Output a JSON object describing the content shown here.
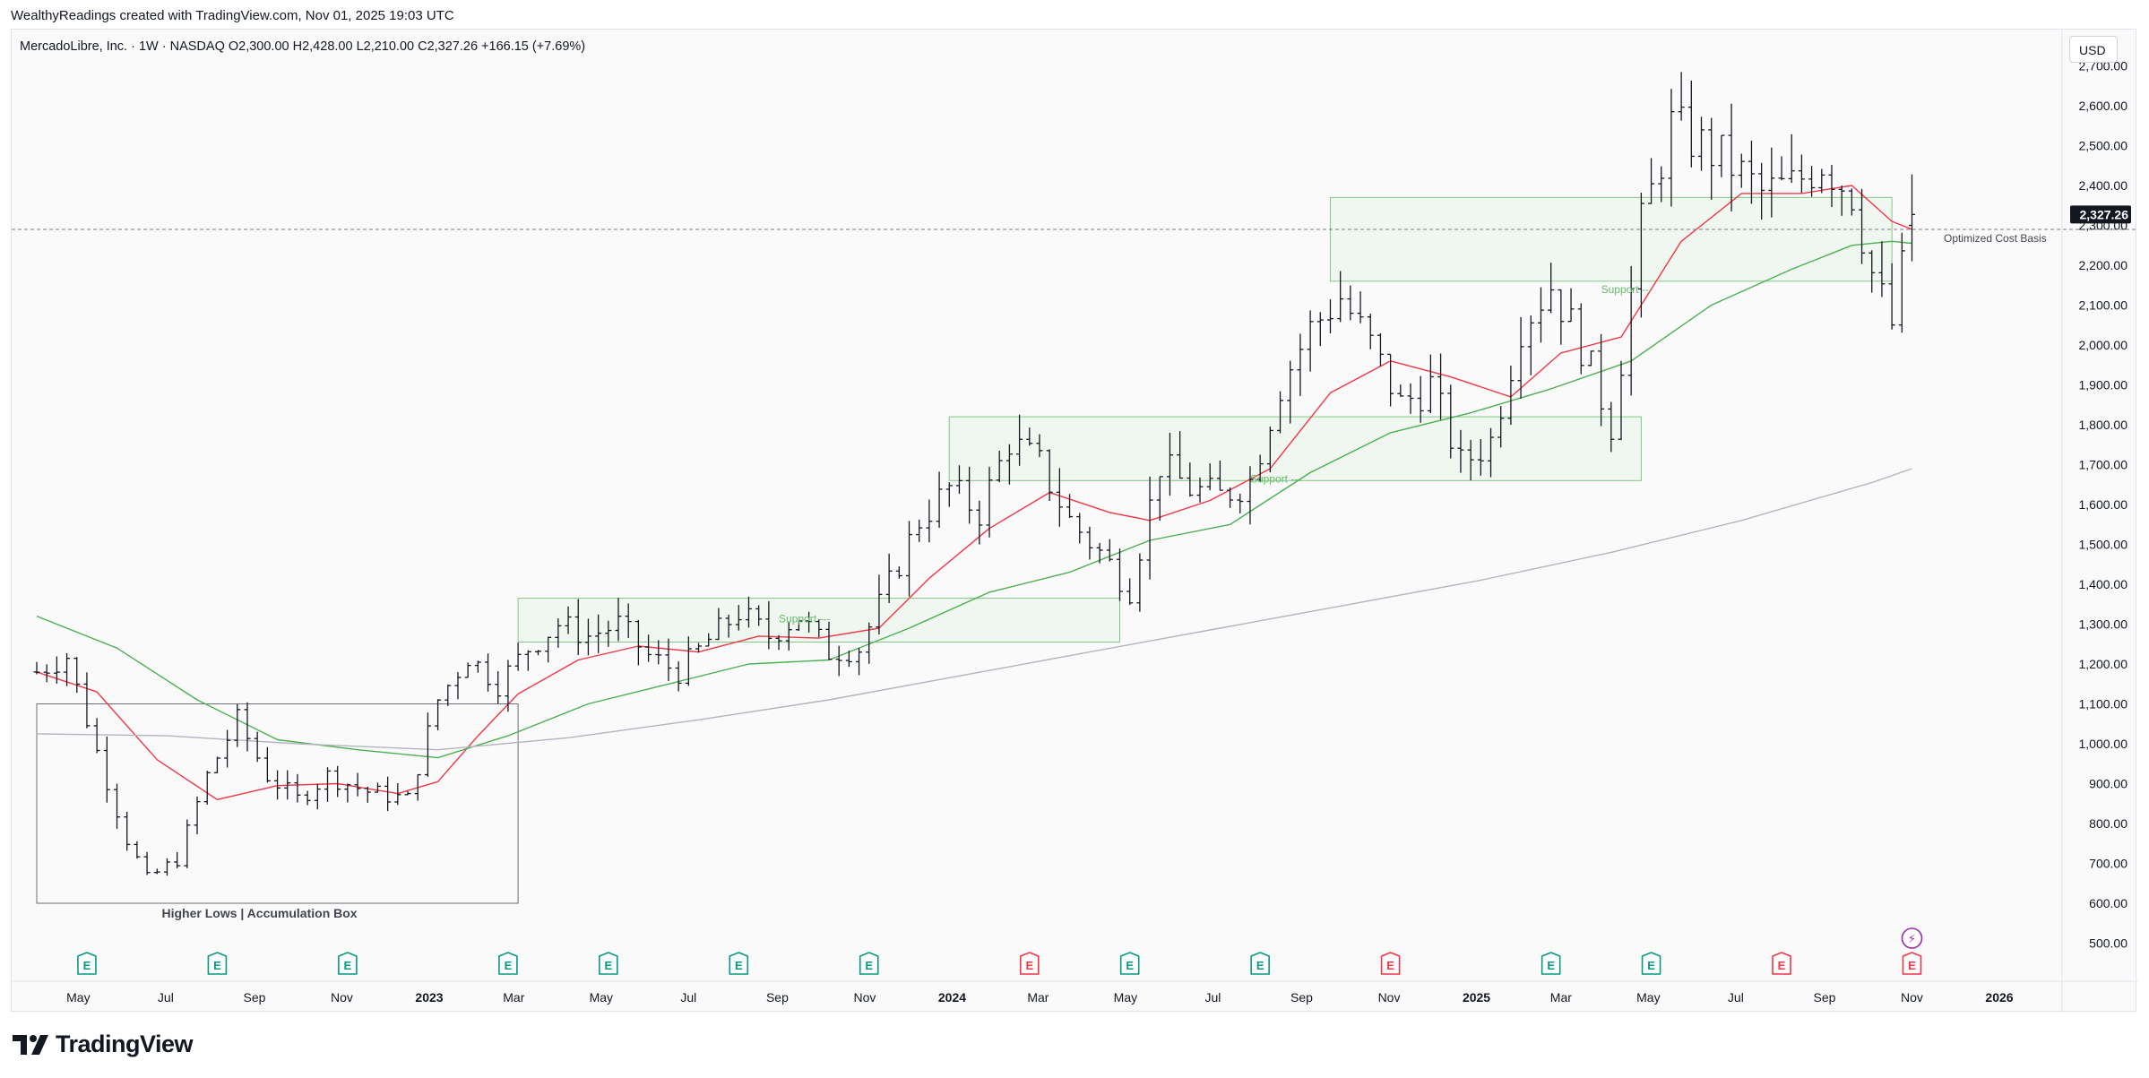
{
  "header": {
    "caption": "WealthyReadings created with TradingView.com, Nov 01, 2025 19:03 UTC",
    "symbol_line": "MercadoLibre, Inc. · 1W · NASDAQ  O2,300.00  H2,428.00  L2,210.00  C2,327.26  +166.15 (+7.69%)",
    "currency_label": "USD"
  },
  "brand": {
    "name": "TradingView"
  },
  "colors": {
    "background": "#fafafa",
    "bar": "#131722",
    "ma_fast": "#f23645",
    "ma_mid": "#4caf50",
    "ma_slow": "#b2b5be",
    "zone_stroke": "#81c784",
    "zone_fill": "#eef6ee",
    "support_text": "#66bb6a",
    "earnings_green": "#089981",
    "earnings_red": "#f23645",
    "dividend_purple": "#9c27b0",
    "price_label_bg": "#131722"
  },
  "chart_data": {
    "type": "ohlc",
    "symbol": "MercadoLibre, Inc.",
    "interval": "1W",
    "exchange": "NASDAQ",
    "currency": "USD",
    "x_axis_labels": [
      "May",
      "Jul",
      "Sep",
      "Nov",
      "2023",
      "Mar",
      "May",
      "Jul",
      "Sep",
      "Nov",
      "2024",
      "Mar",
      "May",
      "Jul",
      "Sep",
      "Nov",
      "2025",
      "Mar",
      "May",
      "Jul",
      "Sep",
      "Nov",
      "2026"
    ],
    "x_axis_bold": [
      "2023",
      "2024",
      "2025",
      "2026"
    ],
    "y_axis_labels": [
      "500.00",
      "600.00",
      "700.00",
      "800.00",
      "900.00",
      "1,000.00",
      "1,100.00",
      "1,200.00",
      "1,300.00",
      "1,400.00",
      "1,500.00",
      "1,600.00",
      "1,700.00",
      "1,800.00",
      "1,900.00",
      "2,000.00",
      "2,100.00",
      "2,200.00",
      "2,300.00",
      "2,400.00",
      "2,500.00",
      "2,600.00",
      "2,700.00"
    ],
    "y_axis_values": [
      500,
      600,
      700,
      800,
      900,
      1000,
      1100,
      1200,
      1300,
      1400,
      1500,
      1600,
      1700,
      1800,
      1900,
      2000,
      2100,
      2200,
      2300,
      2400,
      2500,
      2600,
      2700
    ],
    "current_price_label": "2,327.26",
    "current_price": 2327.26,
    "cost_basis_label": "Optimized Cost Basis",
    "cost_basis": 2290,
    "last_bar": {
      "open": 2300.0,
      "high": 2428.0,
      "low": 2210.0,
      "close": 2327.26,
      "change": 166.15,
      "change_pct": 7.69
    },
    "price_path": [
      [
        "2022-04-02",
        1180
      ],
      [
        "2022-04-23",
        1220
      ],
      [
        "2022-05-14",
        980
      ],
      [
        "2022-06-04",
        760
      ],
      [
        "2022-06-18",
        660
      ],
      [
        "2022-07-09",
        710
      ],
      [
        "2022-07-30",
        920
      ],
      [
        "2022-08-20",
        1060
      ],
      [
        "2022-09-10",
        920
      ],
      [
        "2022-10-01",
        860
      ],
      [
        "2022-10-22",
        920
      ],
      [
        "2022-11-19",
        880
      ],
      [
        "2022-12-17",
        860
      ],
      [
        "2023-01-07",
        1110
      ],
      [
        "2023-01-28",
        1220
      ],
      [
        "2023-02-18",
        1150
      ],
      [
        "2023-03-11",
        1240
      ],
      [
        "2023-04-01",
        1300
      ],
      [
        "2023-04-22",
        1270
      ],
      [
        "2023-05-13",
        1300
      ],
      [
        "2023-06-03",
        1220
      ],
      [
        "2023-06-24",
        1180
      ],
      [
        "2023-07-15",
        1260
      ],
      [
        "2023-08-05",
        1330
      ],
      [
        "2023-08-26",
        1270
      ],
      [
        "2023-09-16",
        1320
      ],
      [
        "2023-10-07",
        1230
      ],
      [
        "2023-10-28",
        1240
      ],
      [
        "2023-11-18",
        1400
      ],
      [
        "2023-12-09",
        1560
      ],
      [
        "2023-12-30",
        1640
      ],
      [
        "2024-01-20",
        1580
      ],
      [
        "2024-02-10",
        1760
      ],
      [
        "2024-03-02",
        1700
      ],
      [
        "2024-03-23",
        1560
      ],
      [
        "2024-04-13",
        1480
      ],
      [
        "2024-05-04",
        1390
      ],
      [
        "2024-05-25",
        1700
      ],
      [
        "2024-06-15",
        1640
      ],
      [
        "2024-07-06",
        1620
      ],
      [
        "2024-07-27",
        1660
      ],
      [
        "2024-08-17",
        1900
      ],
      [
        "2024-09-07",
        2040
      ],
      [
        "2024-09-28",
        2120
      ],
      [
        "2024-10-19",
        2000
      ],
      [
        "2024-11-09",
        1850
      ],
      [
        "2024-11-30",
        1900
      ],
      [
        "2024-12-21",
        1700
      ],
      [
        "2025-01-11",
        1760
      ],
      [
        "2025-02-01",
        2050
      ],
      [
        "2025-02-22",
        2150
      ],
      [
        "2025-03-15",
        2000
      ],
      [
        "2025-04-05",
        1800
      ],
      [
        "2025-04-26",
        2300
      ],
      [
        "2025-05-17",
        2550
      ],
      [
        "2025-06-07",
        2500
      ],
      [
        "2025-06-28",
        2450
      ],
      [
        "2025-07-19",
        2380
      ],
      [
        "2025-08-09",
        2400
      ],
      [
        "2025-08-30",
        2460
      ],
      [
        "2025-09-20",
        2380
      ],
      [
        "2025-10-04",
        2180
      ],
      [
        "2025-10-18",
        2050
      ],
      [
        "2025-11-01",
        2327
      ]
    ],
    "range_pct": 3.8,
    "moving_averages": [
      {
        "color": "#f23645",
        "points": [
          [
            "2022-04-02",
            1180
          ],
          [
            "2022-05-14",
            1130
          ],
          [
            "2022-06-25",
            960
          ],
          [
            "2022-08-06",
            860
          ],
          [
            "2022-09-17",
            895
          ],
          [
            "2022-10-29",
            900
          ],
          [
            "2022-12-10",
            875
          ],
          [
            "2023-01-07",
            905
          ],
          [
            "2023-02-04",
            1020
          ],
          [
            "2023-03-04",
            1125
          ],
          [
            "2023-04-15",
            1210
          ],
          [
            "2023-05-27",
            1245
          ],
          [
            "2023-07-08",
            1230
          ],
          [
            "2023-08-19",
            1270
          ],
          [
            "2023-09-30",
            1265
          ],
          [
            "2023-11-11",
            1290
          ],
          [
            "2023-12-16",
            1415
          ],
          [
            "2024-01-27",
            1540
          ],
          [
            "2024-03-09",
            1630
          ],
          [
            "2024-04-20",
            1580
          ],
          [
            "2024-05-18",
            1560
          ],
          [
            "2024-06-29",
            1610
          ],
          [
            "2024-08-10",
            1690
          ],
          [
            "2024-09-21",
            1880
          ],
          [
            "2024-11-02",
            1960
          ],
          [
            "2024-12-14",
            1920
          ],
          [
            "2025-01-25",
            1870
          ],
          [
            "2025-03-01",
            1980
          ],
          [
            "2025-04-12",
            2020
          ],
          [
            "2025-05-24",
            2260
          ],
          [
            "2025-07-05",
            2380
          ],
          [
            "2025-08-16",
            2380
          ],
          [
            "2025-09-20",
            2400
          ],
          [
            "2025-10-18",
            2310
          ],
          [
            "2025-11-01",
            2290
          ]
        ]
      },
      {
        "color": "#4caf50",
        "points": [
          [
            "2022-04-02",
            1320
          ],
          [
            "2022-05-28",
            1240
          ],
          [
            "2022-07-23",
            1110
          ],
          [
            "2022-09-17",
            1010
          ],
          [
            "2022-11-12",
            985
          ],
          [
            "2023-01-07",
            965
          ],
          [
            "2023-02-25",
            1020
          ],
          [
            "2023-04-22",
            1100
          ],
          [
            "2023-06-17",
            1150
          ],
          [
            "2023-08-12",
            1200
          ],
          [
            "2023-10-07",
            1210
          ],
          [
            "2023-12-02",
            1290
          ],
          [
            "2024-01-27",
            1380
          ],
          [
            "2024-03-23",
            1430
          ],
          [
            "2024-05-18",
            1510
          ],
          [
            "2024-07-13",
            1550
          ],
          [
            "2024-09-07",
            1680
          ],
          [
            "2024-11-02",
            1780
          ],
          [
            "2024-12-28",
            1830
          ],
          [
            "2025-02-22",
            1890
          ],
          [
            "2025-04-19",
            1960
          ],
          [
            "2025-06-14",
            2100
          ],
          [
            "2025-08-09",
            2190
          ],
          [
            "2025-09-20",
            2250
          ],
          [
            "2025-10-18",
            2260
          ],
          [
            "2025-11-01",
            2255
          ]
        ]
      },
      {
        "color": "#b2b5be",
        "points": [
          [
            "2022-04-02",
            1025
          ],
          [
            "2022-07-02",
            1020
          ],
          [
            "2022-10-01",
            1000
          ],
          [
            "2023-01-07",
            985
          ],
          [
            "2023-04-08",
            1015
          ],
          [
            "2023-07-08",
            1060
          ],
          [
            "2023-10-07",
            1110
          ],
          [
            "2024-01-06",
            1170
          ],
          [
            "2024-04-06",
            1230
          ],
          [
            "2024-07-06",
            1290
          ],
          [
            "2024-10-05",
            1350
          ],
          [
            "2025-01-04",
            1410
          ],
          [
            "2025-04-05",
            1480
          ],
          [
            "2025-07-05",
            1560
          ],
          [
            "2025-10-04",
            1655
          ],
          [
            "2025-11-01",
            1690
          ]
        ]
      }
    ],
    "zones": [
      {
        "label": "Higher Lows | Accumulation Box",
        "x0": "2022-04-02",
        "x1": "2023-03-04",
        "y0": 600,
        "y1": 1100,
        "style": "box"
      },
      {
        "label": "Support",
        "x0": "2023-03-04",
        "x1": "2024-04-27",
        "y0": 1255,
        "y1": 1365,
        "style": "zone"
      },
      {
        "label": "Support",
        "x0": "2023-12-30",
        "x1": "2025-04-26",
        "y0": 1660,
        "y1": 1820,
        "style": "zone"
      },
      {
        "label": "Support",
        "x0": "2024-09-21",
        "x1": "2025-10-18",
        "y0": 2160,
        "y1": 2370,
        "style": "zone"
      }
    ],
    "events": [
      {
        "kind": "earnings",
        "label": "E",
        "date": "2022-05-07",
        "result": "beat"
      },
      {
        "kind": "earnings",
        "label": "E",
        "date": "2022-08-06",
        "result": "beat"
      },
      {
        "kind": "earnings",
        "label": "E",
        "date": "2022-11-05",
        "result": "beat"
      },
      {
        "kind": "earnings",
        "label": "E",
        "date": "2023-02-25",
        "result": "beat"
      },
      {
        "kind": "earnings",
        "label": "E",
        "date": "2023-05-06",
        "result": "beat"
      },
      {
        "kind": "earnings",
        "label": "E",
        "date": "2023-08-05",
        "result": "beat"
      },
      {
        "kind": "earnings",
        "label": "E",
        "date": "2023-11-04",
        "result": "beat"
      },
      {
        "kind": "earnings",
        "label": "E",
        "date": "2024-02-24",
        "result": "miss"
      },
      {
        "kind": "earnings",
        "label": "E",
        "date": "2024-05-04",
        "result": "beat"
      },
      {
        "kind": "earnings",
        "label": "E",
        "date": "2024-08-03",
        "result": "beat"
      },
      {
        "kind": "earnings",
        "label": "E",
        "date": "2024-11-02",
        "result": "miss"
      },
      {
        "kind": "earnings",
        "label": "E",
        "date": "2025-02-22",
        "result": "beat"
      },
      {
        "kind": "earnings",
        "label": "E",
        "date": "2025-05-03",
        "result": "beat"
      },
      {
        "kind": "earnings",
        "label": "E",
        "date": "2025-08-02",
        "result": "miss"
      },
      {
        "kind": "earnings",
        "label": "E",
        "date": "2025-11-01",
        "result": "miss"
      },
      {
        "kind": "dividend",
        "label": "⚡",
        "date": "2025-11-01"
      }
    ],
    "grid": false,
    "legend": "none"
  }
}
